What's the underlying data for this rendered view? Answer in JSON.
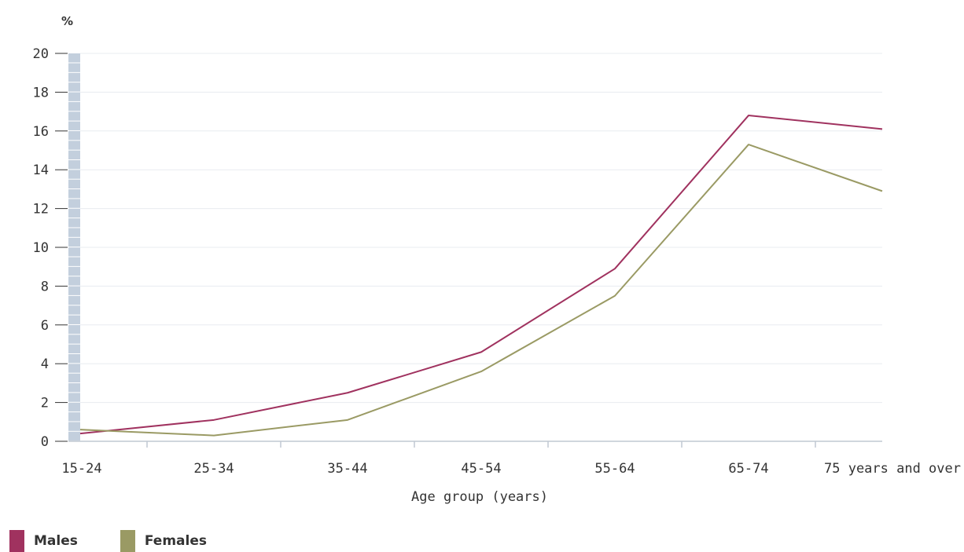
{
  "chart_data": {
    "type": "line",
    "ylabel": "%",
    "xlabel": "Age group (years)",
    "categories": [
      "15-24",
      "25-34",
      "35-44",
      "45-54",
      "55-64",
      "65-74",
      "75 years and over"
    ],
    "ylim": [
      0,
      20
    ],
    "yticks": [
      0,
      2,
      4,
      6,
      8,
      10,
      12,
      14,
      16,
      18,
      20
    ],
    "grid": true,
    "legend_position": "bottom-left",
    "series": [
      {
        "name": "Males",
        "color": "#a0325f",
        "values": [
          0.4,
          1.1,
          2.5,
          4.6,
          8.9,
          16.8,
          16.1
        ]
      },
      {
        "name": "Females",
        "color": "#9a9a64",
        "values": [
          0.6,
          0.3,
          1.1,
          3.6,
          7.5,
          15.3,
          12.9
        ]
      }
    ]
  },
  "legend": {
    "items": [
      {
        "label": "Males",
        "color": "#a0325f"
      },
      {
        "label": "Females",
        "color": "#9a9a64"
      }
    ]
  }
}
